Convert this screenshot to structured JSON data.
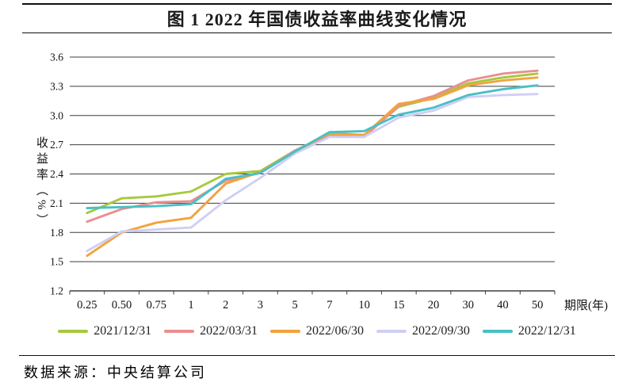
{
  "header": {
    "title": "图 1 2022 年国债收益率曲线变化情况"
  },
  "chart_data": {
    "type": "line",
    "title": "图 1 2022 年国债收益率曲线变化情况",
    "xlabel": "期限(年)",
    "ylabel": "收益率（%）",
    "ylim": [
      1.2,
      3.6
    ],
    "ytick_step": 0.3,
    "grid": "horizontal",
    "legend_position": "bottom",
    "categories": [
      "0.25",
      "0.50",
      "0.75",
      "1",
      "2",
      "3",
      "5",
      "7",
      "10",
      "15",
      "20",
      "30",
      "40",
      "50"
    ],
    "series": [
      {
        "name": "2021/12/31",
        "color": "#a6c93d",
        "values": [
          2.0,
          2.15,
          2.17,
          2.22,
          2.4,
          2.43,
          2.64,
          2.81,
          2.8,
          3.09,
          3.18,
          3.33,
          3.39,
          3.43
        ]
      },
      {
        "name": "2022/03/31",
        "color": "#ea8f8f",
        "values": [
          1.91,
          2.04,
          2.11,
          2.12,
          2.33,
          2.41,
          2.64,
          2.79,
          2.78,
          3.1,
          3.2,
          3.36,
          3.43,
          3.46
        ]
      },
      {
        "name": "2022/06/30",
        "color": "#f2a33e",
        "values": [
          1.56,
          1.8,
          1.9,
          1.95,
          2.3,
          2.42,
          2.63,
          2.82,
          2.8,
          3.12,
          3.17,
          3.31,
          3.36,
          3.39
        ]
      },
      {
        "name": "2022/09/30",
        "color": "#cfcff4",
        "values": [
          1.61,
          1.81,
          1.83,
          1.85,
          2.13,
          2.36,
          2.61,
          2.78,
          2.78,
          2.98,
          3.05,
          3.19,
          3.21,
          3.22
        ]
      },
      {
        "name": "2022/12/31",
        "color": "#48c0c6",
        "values": [
          2.05,
          2.06,
          2.07,
          2.09,
          2.35,
          2.41,
          2.63,
          2.83,
          2.84,
          3.01,
          3.08,
          3.21,
          3.27,
          3.31
        ]
      }
    ]
  },
  "footer": {
    "source": "数据来源：中央结算公司"
  }
}
